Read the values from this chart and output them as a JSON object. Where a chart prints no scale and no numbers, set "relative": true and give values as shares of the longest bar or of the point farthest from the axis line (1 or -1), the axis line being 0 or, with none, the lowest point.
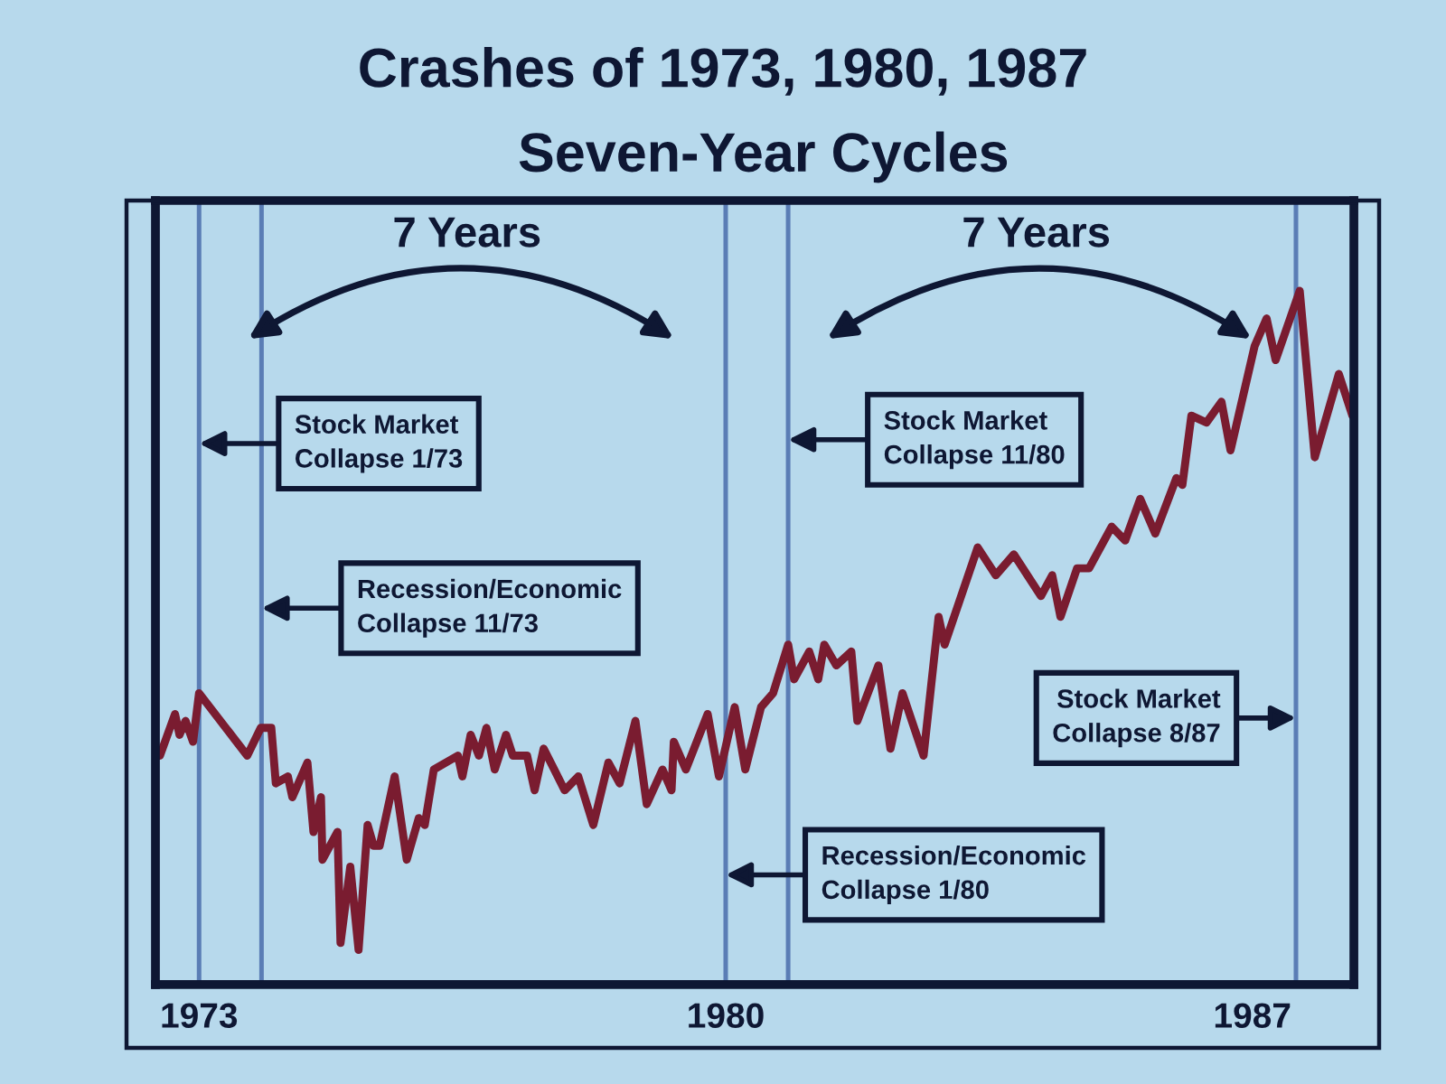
{
  "chart_data": {
    "type": "line",
    "title": "Crashes of 1973, 1980, 1987",
    "subtitle": "Seven-Year Cycles",
    "relative": true,
    "x": [
      1972.48,
      1972.68,
      1972.74,
      1972.82,
      1972.92,
      1973.0,
      1973.64,
      1973.82,
      1973.96,
      1974.02,
      1974.18,
      1974.24,
      1974.44,
      1974.52,
      1974.62,
      1974.64,
      1974.84,
      1974.88,
      1975.01,
      1975.12,
      1975.24,
      1975.32,
      1975.4,
      1975.6,
      1975.76,
      1975.92,
      1976.0,
      1976.12,
      1976.44,
      1976.5,
      1976.61,
      1976.72,
      1976.82,
      1976.93,
      1977.08,
      1977.17,
      1977.36,
      1977.46,
      1977.58,
      1977.72,
      1977.86,
      1978.04,
      1978.24,
      1978.44,
      1978.59,
      1978.8,
      1978.95,
      1979.16,
      1979.28,
      1979.31,
      1979.47,
      1979.76,
      1979.91,
      1980.12,
      1980.26,
      1980.47,
      1980.63,
      1980.83,
      1980.91,
      1981.11,
      1981.23,
      1981.31,
      1981.47,
      1981.67,
      1981.75,
      1982.03,
      1982.19,
      1982.35,
      1982.63,
      1982.83,
      1982.91,
      1983.35,
      1983.59,
      1983.83,
      1984.19,
      1984.34,
      1984.45,
      1984.67,
      1984.83,
      1985.13,
      1985.31,
      1985.51,
      1985.71,
      1985.99,
      1986.07,
      1986.19,
      1986.39,
      1986.59,
      1986.71,
      1987.03,
      1987.19,
      1987.31,
      1987.63,
      1987.83,
      1988.15,
      1988.33
    ],
    "series": [
      {
        "color": "#7a1c30",
        "values": [
          0.33,
          0.39,
          0.36,
          0.38,
          0.35,
          0.42,
          0.33,
          0.37,
          0.37,
          0.29,
          0.3,
          0.27,
          0.32,
          0.22,
          0.27,
          0.18,
          0.22,
          0.06,
          0.17,
          0.05,
          0.23,
          0.2,
          0.2,
          0.3,
          0.18,
          0.24,
          0.23,
          0.31,
          0.33,
          0.3,
          0.36,
          0.33,
          0.37,
          0.31,
          0.36,
          0.33,
          0.33,
          0.28,
          0.34,
          0.31,
          0.28,
          0.3,
          0.23,
          0.32,
          0.29,
          0.38,
          0.26,
          0.31,
          0.28,
          0.35,
          0.31,
          0.39,
          0.3,
          0.4,
          0.31,
          0.4,
          0.42,
          0.49,
          0.44,
          0.48,
          0.44,
          0.49,
          0.46,
          0.48,
          0.38,
          0.46,
          0.34,
          0.42,
          0.33,
          0.53,
          0.49,
          0.63,
          0.59,
          0.62,
          0.56,
          0.59,
          0.53,
          0.6,
          0.6,
          0.66,
          0.64,
          0.7,
          0.65,
          0.73,
          0.72,
          0.82,
          0.81,
          0.84,
          0.77,
          0.92,
          0.96,
          0.9,
          1,
          0.76,
          0.88,
          0.82
        ]
      }
    ],
    "xlim": [
      1972.42,
      1988.35
    ],
    "xticks": [
      1973,
      1980,
      1987
    ],
    "ref_lines": [
      {
        "axis": "x",
        "value": 1973.0,
        "label": "Stock Market\nCollapse 1/73",
        "color": "#5a7db5"
      },
      {
        "axis": "x",
        "value": 1973.83,
        "label": "Recession/Economic\nCollapse 11/73",
        "color": "#5a7db5"
      },
      {
        "axis": "x",
        "value": 1980.0,
        "label": "Recession/Economic\nCollapse 1/80",
        "color": "#5a7db5"
      },
      {
        "axis": "x",
        "value": 1980.83,
        "label": "Stock Market\nCollapse 11/80",
        "color": "#5a7db5"
      },
      {
        "axis": "x",
        "value": 1987.58,
        "label": "Stock Market\nCollapse 8/87",
        "color": "#5a7db5"
      }
    ],
    "annotations": [
      "7 Years",
      "7 Years"
    ],
    "line_style": "solid"
  }
}
